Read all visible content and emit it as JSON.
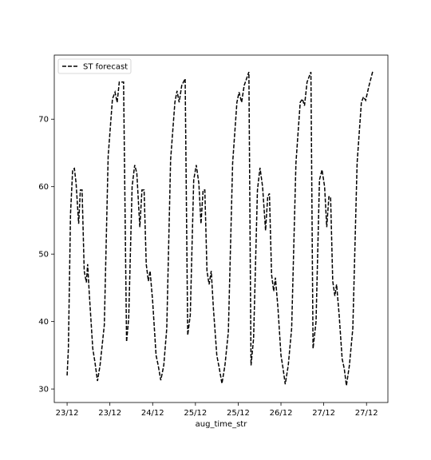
{
  "chart_data": {
    "type": "line",
    "xlabel": "aug_time_str",
    "ylabel": "",
    "x_tick_labels": [
      "23/12",
      "23/12",
      "24/12",
      "25/12",
      "25/12",
      "26/12",
      "27/12",
      "27/12"
    ],
    "y_ticks": [
      30,
      40,
      50,
      60,
      70
    ],
    "ylim": [
      28,
      79.5
    ],
    "grid": false,
    "legend": "top-left",
    "series": [
      {
        "name": "ST forecast",
        "style": "dashed",
        "color": "#000000",
        "points": [
          [
            0.0,
            32.0
          ],
          [
            0.03,
            36.0
          ],
          [
            0.08,
            56.0
          ],
          [
            0.13,
            62.5
          ],
          [
            0.17,
            62.7
          ],
          [
            0.21,
            60.5
          ],
          [
            0.27,
            54.5
          ],
          [
            0.31,
            59.5
          ],
          [
            0.35,
            59.5
          ],
          [
            0.4,
            47.5
          ],
          [
            0.45,
            45.8
          ],
          [
            0.48,
            48.5
          ],
          [
            0.52,
            44.0
          ],
          [
            0.6,
            36.0
          ],
          [
            0.65,
            34.0
          ],
          [
            0.71,
            31.2
          ],
          [
            0.77,
            33.5
          ],
          [
            0.87,
            39.5
          ],
          [
            0.96,
            64.5
          ],
          [
            1.06,
            73.0
          ],
          [
            1.12,
            74.0
          ],
          [
            1.17,
            72.5
          ],
          [
            1.22,
            75.5
          ],
          [
            1.32,
            75.5
          ],
          [
            1.39,
            37.0
          ],
          [
            1.44,
            40.5
          ],
          [
            1.52,
            60.0
          ],
          [
            1.58,
            63.2
          ],
          [
            1.63,
            62.0
          ],
          [
            1.7,
            54.0
          ],
          [
            1.75,
            59.5
          ],
          [
            1.8,
            59.5
          ],
          [
            1.85,
            48.5
          ],
          [
            1.9,
            46.0
          ],
          [
            1.94,
            47.5
          ],
          [
            2.0,
            43.0
          ],
          [
            2.08,
            35.0
          ],
          [
            2.13,
            33.5
          ],
          [
            2.19,
            31.3
          ],
          [
            2.26,
            33.5
          ],
          [
            2.33,
            39.0
          ],
          [
            2.42,
            64.0
          ],
          [
            2.52,
            72.5
          ],
          [
            2.57,
            74.2
          ],
          [
            2.62,
            72.5
          ],
          [
            2.68,
            75.0
          ],
          [
            2.76,
            76.0
          ],
          [
            2.82,
            38.0
          ],
          [
            2.88,
            41.0
          ],
          [
            2.96,
            61.0
          ],
          [
            3.02,
            63.2
          ],
          [
            3.08,
            60.5
          ],
          [
            3.13,
            54.5
          ],
          [
            3.18,
            59.5
          ],
          [
            3.22,
            59.5
          ],
          [
            3.27,
            47.5
          ],
          [
            3.32,
            45.5
          ],
          [
            3.37,
            47.5
          ],
          [
            3.42,
            42.0
          ],
          [
            3.5,
            35.0
          ],
          [
            3.56,
            33.0
          ],
          [
            3.62,
            30.8
          ],
          [
            3.69,
            33.5
          ],
          [
            3.77,
            38.5
          ],
          [
            3.87,
            63.5
          ],
          [
            3.97,
            72.5
          ],
          [
            4.02,
            74.0
          ],
          [
            4.08,
            72.5
          ],
          [
            4.14,
            75.0
          ],
          [
            4.25,
            77.0
          ],
          [
            4.3,
            33.5
          ],
          [
            4.36,
            37.5
          ],
          [
            4.45,
            59.5
          ],
          [
            4.51,
            62.8
          ],
          [
            4.57,
            60.0
          ],
          [
            4.64,
            53.5
          ],
          [
            4.69,
            58.5
          ],
          [
            4.73,
            59.0
          ],
          [
            4.78,
            47.0
          ],
          [
            4.83,
            44.5
          ],
          [
            4.87,
            46.5
          ],
          [
            4.93,
            42.0
          ],
          [
            5.0,
            35.0
          ],
          [
            5.05,
            33.0
          ],
          [
            5.1,
            30.7
          ],
          [
            5.17,
            33.5
          ],
          [
            5.25,
            39.0
          ],
          [
            5.35,
            63.5
          ],
          [
            5.45,
            72.5
          ],
          [
            5.5,
            73.0
          ],
          [
            5.55,
            72.0
          ],
          [
            5.61,
            75.5
          ],
          [
            5.7,
            77.0
          ],
          [
            5.75,
            36.0
          ],
          [
            5.82,
            40.0
          ],
          [
            5.9,
            61.0
          ],
          [
            5.96,
            62.5
          ],
          [
            6.02,
            60.0
          ],
          [
            6.07,
            54.0
          ],
          [
            6.12,
            58.5
          ],
          [
            6.16,
            58.5
          ],
          [
            6.21,
            46.0
          ],
          [
            6.26,
            43.8
          ],
          [
            6.3,
            45.5
          ],
          [
            6.36,
            41.0
          ],
          [
            6.43,
            34.5
          ],
          [
            6.48,
            33.0
          ],
          [
            6.53,
            30.5
          ],
          [
            6.6,
            33.5
          ],
          [
            6.68,
            39.0
          ],
          [
            6.78,
            63.5
          ],
          [
            6.88,
            72.5
          ],
          [
            6.93,
            73.3
          ],
          [
            6.98,
            72.8
          ],
          [
            7.06,
            75.0
          ],
          [
            7.15,
            77.2
          ]
        ]
      }
    ]
  }
}
